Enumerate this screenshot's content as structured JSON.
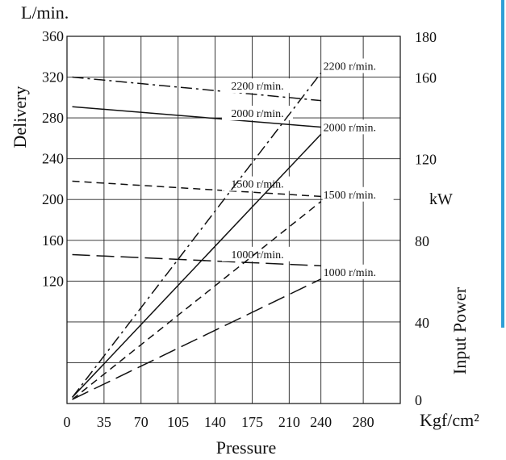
{
  "chart_data": {
    "type": "line",
    "xlabel": "Pressure",
    "x_unit": "Kgf/cm²",
    "xlim": [
      0,
      315
    ],
    "x_ticks": [
      0,
      35,
      70,
      105,
      140,
      175,
      210,
      240,
      280
    ],
    "y_left": {
      "label": "Delivery",
      "unit": "L/min.",
      "ylim": [
        0,
        360
      ],
      "ticks": [
        120,
        160,
        200,
        240,
        280,
        320,
        360
      ]
    },
    "y_right": {
      "label": "Input Power",
      "unit": "kW",
      "ylim": [
        0,
        180
      ],
      "ticks": [
        0,
        40,
        80,
        120,
        160,
        180
      ]
    },
    "grid": true,
    "series": [
      {
        "name": "2200 r/min.",
        "axis": "left",
        "style": "dashdot",
        "x": [
          5,
          240
        ],
        "y": [
          320,
          297
        ]
      },
      {
        "name": "2000 r/min.",
        "axis": "left",
        "style": "solid",
        "x": [
          5,
          240
        ],
        "y": [
          291,
          271
        ]
      },
      {
        "name": "1500 r/min.",
        "axis": "left",
        "style": "dashed",
        "x": [
          5,
          240
        ],
        "y": [
          218,
          203
        ]
      },
      {
        "name": "1000 r/min.",
        "axis": "left",
        "style": "longdash",
        "x": [
          5,
          240
        ],
        "y": [
          146,
          135
        ]
      },
      {
        "name": "2200 r/min.",
        "axis": "right",
        "style": "dashdot",
        "x": [
          5,
          240
        ],
        "y": [
          3,
          162
        ]
      },
      {
        "name": "2000 r/min.",
        "axis": "right",
        "style": "solid",
        "x": [
          5,
          240
        ],
        "y": [
          3,
          132
        ]
      },
      {
        "name": "1500 r/min.",
        "axis": "right",
        "style": "dashed",
        "x": [
          5,
          240
        ],
        "y": [
          2,
          99
        ]
      },
      {
        "name": "1000 r/min.",
        "axis": "right",
        "style": "longdash",
        "x": [
          5,
          240
        ],
        "y": [
          2,
          61
        ]
      }
    ]
  }
}
